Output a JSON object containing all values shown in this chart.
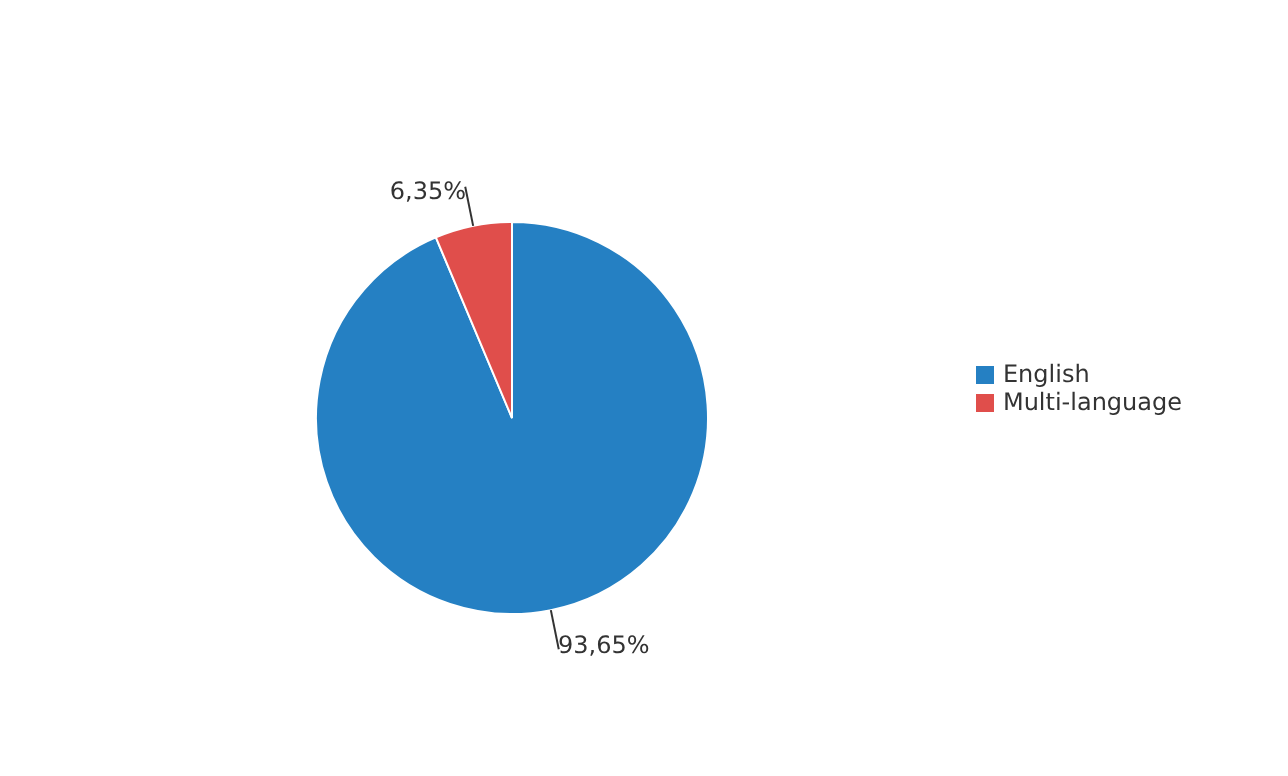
{
  "chart_data": {
    "type": "pie",
    "categories": [
      "English",
      "Multi-language"
    ],
    "values": [
      93.65,
      6.35
    ],
    "colors": [
      "#2580c3",
      "#e04e4b"
    ],
    "value_labels": [
      "93,65%",
      "6,35%"
    ],
    "legend": "right"
  }
}
